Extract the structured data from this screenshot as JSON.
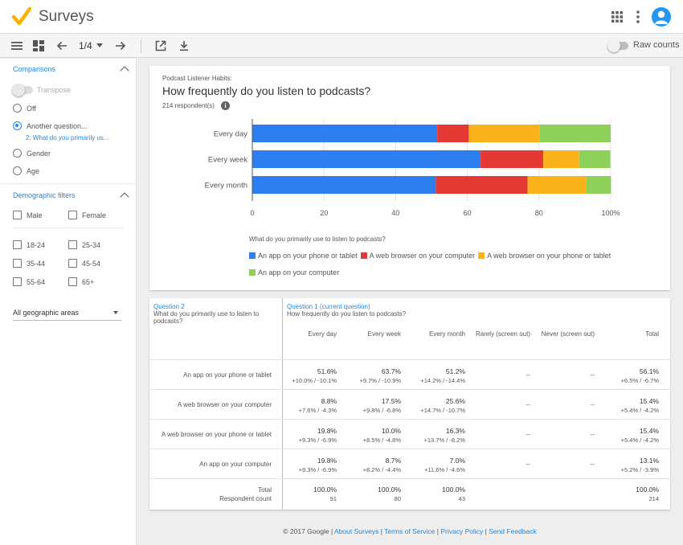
{
  "app": {
    "title": "Surveys"
  },
  "toolbar": {
    "page_indicator": "1/4",
    "raw_counts_label": "Raw counts"
  },
  "sidebar": {
    "comparisons_title": "Comparisons",
    "transpose_label": "Transpose",
    "options": [
      {
        "label": "Off",
        "selected": false
      },
      {
        "label": "Another question...",
        "selected": true,
        "sub": "2: What do you primarily us..."
      },
      {
        "label": "Gender",
        "selected": false
      },
      {
        "label": "Age",
        "selected": false
      }
    ],
    "demographic_title": "Demographic filters",
    "gender": [
      "Male",
      "Female"
    ],
    "ages": [
      "18-24",
      "25-34",
      "35-44",
      "45-54",
      "55-64",
      "65+"
    ],
    "geo": "All geographic areas"
  },
  "chart": {
    "subtitle": "Podcast Listener Habits:",
    "title": "How frequently do you listen to podcasts?",
    "respondents": "214 respondent(s)",
    "legend_question": "What do you primarily use to listen to podcasts?"
  },
  "chart_data": {
    "type": "bar",
    "orientation": "horizontal",
    "stacked": true,
    "categories": [
      "Every day",
      "Every week",
      "Every month"
    ],
    "series": [
      {
        "name": "An app on your phone or tablet",
        "color": "#2f7ef0",
        "values": [
          51.6,
          63.7,
          51.2
        ]
      },
      {
        "name": "A web browser on your computer",
        "color": "#e53935",
        "values": [
          8.8,
          17.5,
          25.6
        ]
      },
      {
        "name": "A web browser on your phone or tablet",
        "color": "#fbb31c",
        "values": [
          19.8,
          10.0,
          16.3
        ]
      },
      {
        "name": "An app on your computer",
        "color": "#8ed05a",
        "values": [
          19.8,
          8.7,
          7.0
        ]
      }
    ],
    "xlim": [
      0,
      100
    ],
    "xticks": [
      "0",
      "20",
      "40",
      "60",
      "80",
      "100%"
    ],
    "grid": true,
    "legend_position": "bottom"
  },
  "table": {
    "q2_label": "Question 2",
    "q2_text": "What do you primarily use to listen to podcasts?",
    "q1_label": "Question 1 (current question)",
    "q1_text": "How frequently do you listen to podcasts?",
    "columns": [
      "Every day",
      "Every week",
      "Every month",
      "Rarely (screen out)",
      "Never (screen out)",
      "Total"
    ],
    "rows": [
      {
        "label": "An app on your phone or tablet",
        "cells": [
          [
            "51.6%",
            "+10.0% / -10.1%"
          ],
          [
            "63.7%",
            "+9.7% / -10.9%"
          ],
          [
            "51.2%",
            "+14.2% / -14.4%"
          ],
          [
            "--",
            ""
          ],
          [
            "--",
            ""
          ],
          [
            "56.1%",
            "+6.5% / -6.7%"
          ]
        ]
      },
      {
        "label": "A web browser on your computer",
        "cells": [
          [
            "8.8%",
            "+7.6% / -4.3%"
          ],
          [
            "17.5%",
            "+9.8% / -6.8%"
          ],
          [
            "25.6%",
            "+14.7% / -10.7%"
          ],
          [
            "--",
            ""
          ],
          [
            "--",
            ""
          ],
          [
            "15.4%",
            "+5.4% / -4.2%"
          ]
        ]
      },
      {
        "label": "A web browser on your phone or tablet",
        "cells": [
          [
            "19.8%",
            "+9.3% / -6.9%"
          ],
          [
            "10.0%",
            "+8.5% / -4.8%"
          ],
          [
            "16.3%",
            "+13.7% / -8.2%"
          ],
          [
            "--",
            ""
          ],
          [
            "--",
            ""
          ],
          [
            "15.4%",
            "+5.4% / -4.2%"
          ]
        ]
      },
      {
        "label": "An app on your computer",
        "cells": [
          [
            "19.8%",
            "+9.3% / -6.9%"
          ],
          [
            "8.7%",
            "+8.2% / -4.4%"
          ],
          [
            "7.0%",
            "+11.6% / -4.6%"
          ],
          [
            "--",
            ""
          ],
          [
            "--",
            ""
          ],
          [
            "13.1%",
            "+5.2% / -3.9%"
          ]
        ]
      }
    ],
    "total_row": {
      "label1": "Total",
      "label2": "Respondent count",
      "cells": [
        [
          "100.0%",
          "91"
        ],
        [
          "100.0%",
          "80"
        ],
        [
          "100.0%",
          "43"
        ],
        [
          "",
          ""
        ],
        [
          "",
          ""
        ],
        [
          "100.0%",
          "214"
        ]
      ]
    }
  },
  "footer": {
    "copyright": "© 2017 Google",
    "links": [
      "About Surveys",
      "Terms of Service",
      "Privacy Policy",
      "Send Feedback"
    ]
  },
  "colors": {
    "accent": "#1e88e5",
    "avatar": "#2196f3"
  }
}
